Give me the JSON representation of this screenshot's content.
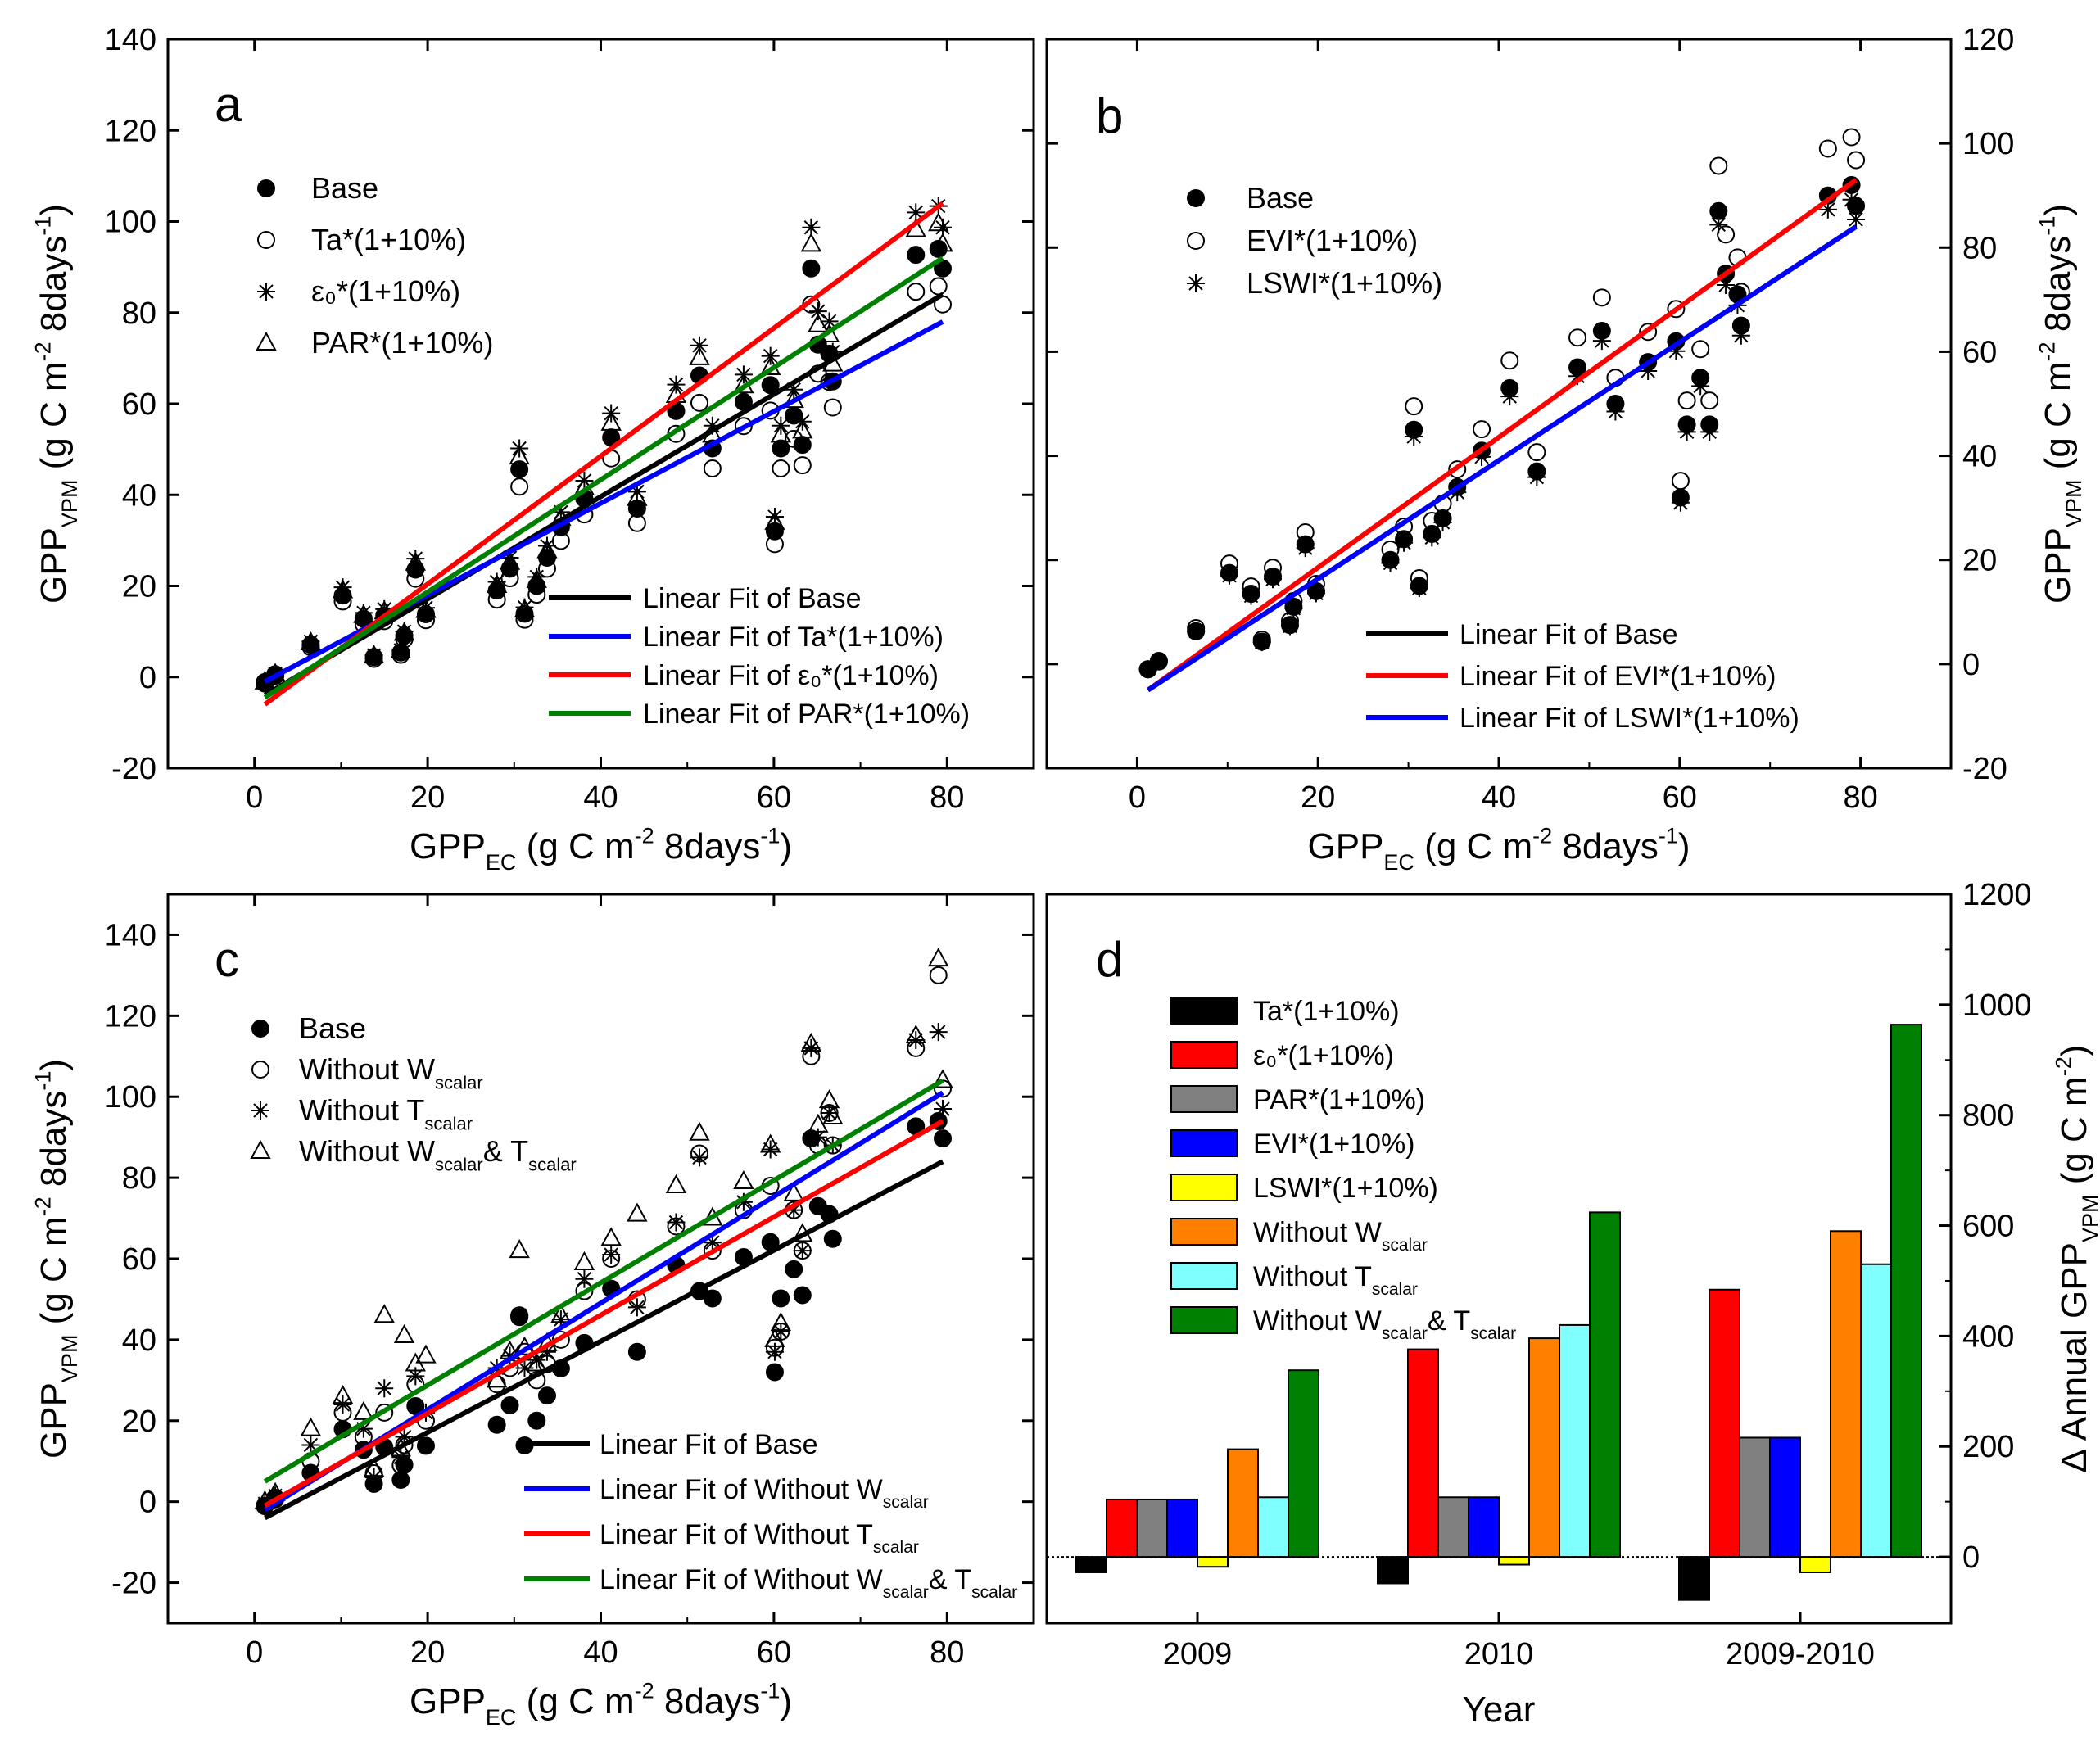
{
  "chart_data": [
    {
      "id": "a",
      "type": "scatter",
      "panel_label": "a",
      "xlabel": {
        "main": "GPP",
        "sub": "EC",
        "rest": " (g C m",
        "sup": "-2",
        "rest2": " 8days",
        "sup2": "-1",
        "end": ")"
      },
      "ylabel": {
        "main": "GPP",
        "sub": "VPM",
        "rest": " (g C m",
        "sup": "-2",
        "rest2": " 8days",
        "sup2": "-1",
        "end": ")"
      },
      "xlim": [
        -10,
        90
      ],
      "ylim": [
        -20,
        140
      ],
      "xticks": [
        "0",
        "20",
        "40",
        "60",
        "80"
      ],
      "yticks": [
        "-20",
        "0",
        "20",
        "40",
        "60",
        "80",
        "100",
        "120",
        "140"
      ],
      "legend": [
        "Base",
        "Ta*(1+10%)",
        "ε₀*(1+10%)",
        "PAR*(1+10%)"
      ],
      "fit_legend": [
        "Linear Fit of Base",
        "Linear Fit of Ta*(1+10%)",
        "Linear Fit of  ε₀*(1+10%)",
        "Linear Fit of PAR*(1+10%)"
      ],
      "x": [
        1.2,
        2.4,
        6.5,
        10.2,
        12.6,
        13.8,
        15.0,
        16.9,
        17.3,
        18.6,
        19.8,
        28.0,
        29.5,
        30.6,
        31.2,
        32.6,
        33.8,
        35.4,
        38.1,
        41.2,
        44.2,
        48.7,
        51.4,
        52.9,
        56.5,
        59.6,
        60.1,
        60.8,
        62.3,
        63.3,
        64.3,
        65.1,
        66.4,
        66.8,
        76.4,
        79.0,
        79.5
      ],
      "series": [
        {
          "name": "Base",
          "marker": "filled-circle",
          "values": [
            -1.1,
            0.6,
            7.1,
            17.9,
            12.8,
            4.4,
            13.5,
            5.4,
            9.1,
            23.6,
            13.8,
            19.0,
            23.8,
            45.6,
            13.9,
            20.0,
            26.2,
            32.9,
            39.2,
            52.6,
            37.0,
            58.4,
            66.2,
            50.2,
            60.4,
            64.1,
            32.0,
            50.2,
            57.4,
            51.0,
            89.7,
            73.0,
            71.0,
            64.9,
            92.7,
            94.0,
            89.7
          ]
        },
        {
          "name": "Ta*(1+10%)",
          "marker": "open-circle",
          "values": [
            -1.4,
            0.3,
            6.6,
            16.6,
            11.6,
            4.0,
            12.3,
            4.9,
            8.3,
            21.6,
            12.5,
            17.0,
            21.7,
            41.8,
            12.6,
            18.1,
            23.8,
            29.9,
            35.7,
            48.0,
            33.8,
            53.4,
            60.2,
            45.8,
            55.1,
            58.5,
            29.2,
            45.8,
            52.3,
            46.5,
            81.8,
            66.6,
            64.8,
            59.2,
            84.6,
            85.8,
            81.8
          ]
        },
        {
          "name": "ε₀*(1+10%)",
          "marker": "asterisk",
          "values": [
            -1.2,
            0.7,
            7.8,
            19.7,
            14.1,
            4.8,
            14.9,
            5.9,
            10.0,
            26.0,
            15.2,
            20.9,
            26.2,
            50.2,
            15.3,
            22.0,
            28.8,
            36.2,
            43.1,
            57.9,
            40.7,
            64.2,
            72.8,
            55.2,
            66.4,
            70.5,
            35.2,
            55.2,
            63.1,
            56.1,
            98.7,
            80.3,
            78.1,
            71.4,
            102.0,
            103.4,
            98.7
          ]
        },
        {
          "name": "PAR*(1+10%)",
          "marker": "triangle",
          "values": [
            -1.1,
            0.6,
            7.5,
            18.9,
            13.5,
            4.6,
            14.3,
            5.7,
            9.6,
            25.0,
            14.6,
            20.1,
            25.2,
            48.3,
            14.7,
            21.2,
            27.7,
            34.8,
            41.5,
            55.7,
            39.2,
            61.8,
            70.1,
            53.1,
            63.9,
            67.9,
            33.9,
            53.1,
            60.7,
            54.0,
            95.0,
            77.3,
            75.1,
            68.7,
            98.2,
            99.5,
            95.0
          ]
        }
      ],
      "fits": [
        {
          "name": "Linear Fit of Base",
          "color": "#000000",
          "x": [
            1.2,
            79.5
          ],
          "y": [
            -4.0,
            84.0
          ]
        },
        {
          "name": "Linear Fit of Ta*(1+10%)",
          "color": "#0000ff",
          "x": [
            1.2,
            79.5
          ],
          "y": [
            -1.0,
            78.0
          ]
        },
        {
          "name": "Linear Fit of  ε₀*(1+10%)",
          "color": "#ff0000",
          "x": [
            1.2,
            79.5
          ],
          "y": [
            -6.0,
            104.0
          ]
        },
        {
          "name": "Linear Fit of PAR*(1+10%)",
          "color": "#008000",
          "x": [
            1.2,
            79.5
          ],
          "y": [
            -4.5,
            92.0
          ]
        }
      ]
    },
    {
      "id": "b",
      "type": "scatter",
      "panel_label": "b",
      "xlabel": {
        "main": "GPP",
        "sub": "EC",
        "rest": " (g C m",
        "sup": "-2",
        "rest2": " 8days",
        "sup2": "-1",
        "end": ")"
      },
      "ylabel": {
        "main": "GPP",
        "sub": "VPM",
        "rest": " (g C m",
        "sup": "-2",
        "rest2": " 8days",
        "sup2": "-1",
        "end": ")"
      },
      "xlim": [
        -10,
        90
      ],
      "ylim": [
        -20,
        120
      ],
      "xticks": [
        "0",
        "20",
        "40",
        "60",
        "80"
      ],
      "yticks": [
        "-20",
        "0",
        "20",
        "40",
        "60",
        "80",
        "100",
        "120"
      ],
      "legend": [
        "Base",
        "EVI*(1+10%)",
        "LSWI*(1+10%)"
      ],
      "fit_legend": [
        "Linear Fit of Base",
        "Linear Fit of EVI*(1+10%)",
        "Linear Fit of LSWI*(1+10%)"
      ],
      "x": [
        1.2,
        2.4,
        6.5,
        10.2,
        12.6,
        13.8,
        15.0,
        16.9,
        17.3,
        18.6,
        19.8,
        28.0,
        29.5,
        30.6,
        31.2,
        32.6,
        33.8,
        35.4,
        38.1,
        41.2,
        44.2,
        48.7,
        51.4,
        52.9,
        56.5,
        59.6,
        60.1,
        60.8,
        62.3,
        63.3,
        64.3,
        65.1,
        66.4,
        66.8,
        76.4,
        79.0,
        79.5
      ],
      "series": [
        {
          "name": "Base",
          "marker": "filled-circle",
          "values": [
            -1.0,
            0.5,
            6.3,
            17.5,
            13.5,
            4.3,
            16.8,
            7.5,
            11.0,
            23.0,
            14.0,
            20.0,
            24.0,
            45.0,
            15.0,
            25.0,
            28.0,
            34.0,
            41.0,
            53.0,
            37.0,
            57.0,
            64.0,
            50.0,
            58.0,
            62.0,
            32.0,
            46.0,
            55.0,
            46.0,
            87.0,
            75.0,
            71.0,
            65.0,
            90.0,
            92.0,
            88.0
          ]
        },
        {
          "name": "EVI*(1+10%)",
          "marker": "open-circle",
          "values": [
            -1.0,
            0.6,
            6.9,
            19.3,
            14.9,
            4.7,
            18.5,
            8.3,
            12.1,
            25.3,
            15.4,
            22.0,
            26.4,
            49.5,
            16.5,
            27.5,
            30.8,
            37.4,
            45.1,
            58.3,
            40.7,
            62.7,
            70.4,
            55.0,
            63.8,
            68.2,
            35.2,
            50.6,
            60.5,
            50.6,
            95.7,
            82.5,
            78.1,
            71.5,
            99.0,
            101.2,
            96.8
          ]
        },
        {
          "name": "LSWI*(1+10%)",
          "marker": "asterisk",
          "values": [
            -1.0,
            0.5,
            6.3,
            17.0,
            13.1,
            4.2,
            16.3,
            7.3,
            10.7,
            22.3,
            13.6,
            19.4,
            23.3,
            43.7,
            14.6,
            24.3,
            27.2,
            33.0,
            39.8,
            51.4,
            35.9,
            55.3,
            62.1,
            48.5,
            56.3,
            60.1,
            31.0,
            44.6,
            53.4,
            44.6,
            84.4,
            72.8,
            68.9,
            63.1,
            87.3,
            89.2,
            85.4
          ]
        }
      ],
      "fits": [
        {
          "name": "Linear Fit of Base",
          "color": "#000000",
          "x": [
            1.2,
            79.5
          ],
          "y": [
            -5.0,
            84.0
          ]
        },
        {
          "name": "Linear Fit of EVI*(1+10%)",
          "color": "#ff0000",
          "x": [
            1.2,
            79.5
          ],
          "y": [
            -5.0,
            93.0
          ]
        },
        {
          "name": "Linear Fit of LSWI*(1+10%)",
          "color": "#0000ff",
          "x": [
            1.2,
            79.5
          ],
          "y": [
            -5.0,
            84.0
          ]
        }
      ]
    },
    {
      "id": "c",
      "type": "scatter",
      "panel_label": "c",
      "xlabel": {
        "main": "GPP",
        "sub": "EC",
        "rest": " (g C m",
        "sup": "-2",
        "rest2": " 8days",
        "sup2": "-1",
        "end": ")"
      },
      "ylabel": {
        "main": "GPP",
        "sub": "VPM",
        "rest": " (g C m",
        "sup": "-2",
        "rest2": " 8days",
        "sup2": "-1",
        "end": ")"
      },
      "xlim": [
        -10,
        90
      ],
      "ylim": [
        -30,
        150
      ],
      "xticks": [
        "0",
        "20",
        "40",
        "60",
        "80"
      ],
      "yticks": [
        "-20",
        "0",
        "20",
        "40",
        "60",
        "80",
        "100",
        "120",
        "140"
      ],
      "legend": [
        {
          "main": "Base"
        },
        {
          "main": "Without W",
          "sub": "scalar"
        },
        {
          "main": "Without T",
          "sub": "scalar"
        },
        {
          "main": "Without W",
          "sub": "scalar",
          "mid": "& T",
          "sub2": "scalar"
        }
      ],
      "fit_legend": [
        {
          "main": "Linear Fit of Base"
        },
        {
          "main": "Linear Fit of Without W",
          "sub": "scalar"
        },
        {
          "main": "Linear Fit of Without T",
          "sub": "scalar"
        },
        {
          "main": "Linear Fit of Without W",
          "sub": "scalar",
          "mid": "& T",
          "sub2": "scalar"
        }
      ],
      "x": [
        1.2,
        2.4,
        6.5,
        10.2,
        12.6,
        13.8,
        15.0,
        16.9,
        17.3,
        18.6,
        19.8,
        28.0,
        29.5,
        30.6,
        31.2,
        32.6,
        33.8,
        35.4,
        38.1,
        41.2,
        44.2,
        48.7,
        51.4,
        52.9,
        56.5,
        59.6,
        60.1,
        60.8,
        62.3,
        63.3,
        64.3,
        65.1,
        66.4,
        66.8,
        76.4,
        79.0,
        79.5
      ],
      "series": [
        {
          "name": "Base",
          "marker": "filled-circle",
          "values": [
            -1.1,
            0.6,
            7.1,
            17.9,
            12.8,
            4.4,
            13.5,
            5.4,
            9.1,
            23.6,
            13.8,
            19.0,
            23.8,
            45.6,
            13.9,
            20.0,
            26.2,
            32.9,
            39.2,
            52.6,
            37.0,
            58.4,
            52.0,
            50.2,
            60.4,
            64.1,
            32.0,
            50.2,
            57.4,
            51.0,
            89.7,
            73.0,
            71.0,
            64.9,
            92.7,
            94.0,
            89.7
          ]
        },
        {
          "name": "Without Wscalar",
          "marker": "open-circle",
          "values": [
            -1.0,
            1.0,
            10.0,
            22.0,
            16.0,
            7.0,
            22.0,
            9.0,
            14.0,
            29.0,
            20.0,
            29.0,
            33.0,
            46.0,
            37.0,
            30.0,
            34.0,
            40.0,
            52.0,
            60.0,
            50.0,
            68.0,
            86.0,
            62.0,
            72.0,
            78.0,
            38.0,
            42.0,
            72.0,
            62.0,
            110.0,
            88.0,
            96.0,
            88.0,
            112.0,
            130.0,
            102.0
          ]
        },
        {
          "name": "Without Tscalar",
          "marker": "asterisk",
          "values": [
            -0.5,
            1.5,
            14.0,
            24.0,
            18.0,
            6.0,
            28.0,
            11.0,
            16.0,
            31.0,
            22.0,
            33.0,
            36.0,
            46.0,
            33.0,
            35.0,
            37.0,
            45.0,
            55.0,
            61.0,
            48.0,
            69.0,
            85.0,
            64.0,
            74.0,
            87.0,
            37.0,
            42.0,
            72.0,
            62.0,
            112.0,
            90.0,
            96.0,
            88.0,
            114.0,
            116.0,
            97.0
          ]
        },
        {
          "name": "Without Wscalar& Tscalar",
          "marker": "triangle",
          "values": [
            0.0,
            2.0,
            18.0,
            26.0,
            22.0,
            8.0,
            46.0,
            13.0,
            41.0,
            34.0,
            36.0,
            30.0,
            37.0,
            62.0,
            38.0,
            34.0,
            39.0,
            46.0,
            59.0,
            65.0,
            71.0,
            78.0,
            91.0,
            70.0,
            79.0,
            88.0,
            40.0,
            44.0,
            76.0,
            66.0,
            113.0,
            93.0,
            99.0,
            95.0,
            115.0,
            134.0,
            104.0
          ]
        }
      ],
      "fits": [
        {
          "name": "Linear Fit of Base",
          "color": "#000000",
          "x": [
            1.2,
            79.5
          ],
          "y": [
            -4.0,
            84.0
          ]
        },
        {
          "name": "Linear Fit of Without Wscalar",
          "color": "#0000ff",
          "x": [
            1.2,
            79.5
          ],
          "y": [
            -2.0,
            101.0
          ]
        },
        {
          "name": "Linear Fit of Without Tscalar",
          "color": "#ff0000",
          "x": [
            1.2,
            79.5
          ],
          "y": [
            -1.0,
            94.0
          ]
        },
        {
          "name": "Linear Fit of Without Wscalar& Tscalar",
          "color": "#008000",
          "x": [
            1.2,
            79.5
          ],
          "y": [
            5.0,
            104.0
          ]
        }
      ]
    },
    {
      "id": "d",
      "type": "bar",
      "panel_label": "d",
      "xlabel": "Year",
      "ylabel": {
        "pre": "Δ Annual GPP",
        "sub": "VPM",
        "rest": " (g C m",
        "sup": "-2",
        "end": ")"
      },
      "categories": [
        "2009",
        "2010",
        "2009-2010"
      ],
      "ylim": [
        -120,
        1200
      ],
      "yticks": [
        "0",
        "200",
        "400",
        "600",
        "800",
        "1000",
        "1200"
      ],
      "legend": [
        {
          "main": "Ta*(1+10%)"
        },
        {
          "main": "ε₀*(1+10%)"
        },
        {
          "main": "PAR*(1+10%)"
        },
        {
          "main": "EVI*(1+10%)"
        },
        {
          "main": "LSWI*(1+10%)"
        },
        {
          "main": "Without W",
          "sub": "scalar"
        },
        {
          "main": "Without T",
          "sub": "scalar"
        },
        {
          "main": "Without W",
          "sub": "scalar",
          "mid": "& T",
          "sub2": "scalar"
        }
      ],
      "series": [
        {
          "name": "Ta*(1+10%)",
          "color": "#000000",
          "values": [
            -28,
            -48,
            -78
          ]
        },
        {
          "name": "ε₀*(1+10%)",
          "color": "#ff0000",
          "values": [
            104,
            376,
            484
          ]
        },
        {
          "name": "PAR*(1+10%)",
          "color": "#808080",
          "values": [
            104,
            108,
            216
          ]
        },
        {
          "name": "EVI*(1+10%)",
          "color": "#0000ff",
          "values": [
            104,
            108,
            216
          ]
        },
        {
          "name": "LSWI*(1+10%)",
          "color": "#ffff00",
          "values": [
            -18,
            -14,
            -28
          ]
        },
        {
          "name": "Without Wscalar",
          "color": "#ff8000",
          "values": [
            195,
            396,
            590
          ]
        },
        {
          "name": "Without Tscalar",
          "color": "#80ffff",
          "values": [
            108,
            420,
            530
          ]
        },
        {
          "name": "Without Wscalar& Tscalar",
          "color": "#008000",
          "values": [
            338,
            624,
            964
          ]
        }
      ]
    }
  ]
}
